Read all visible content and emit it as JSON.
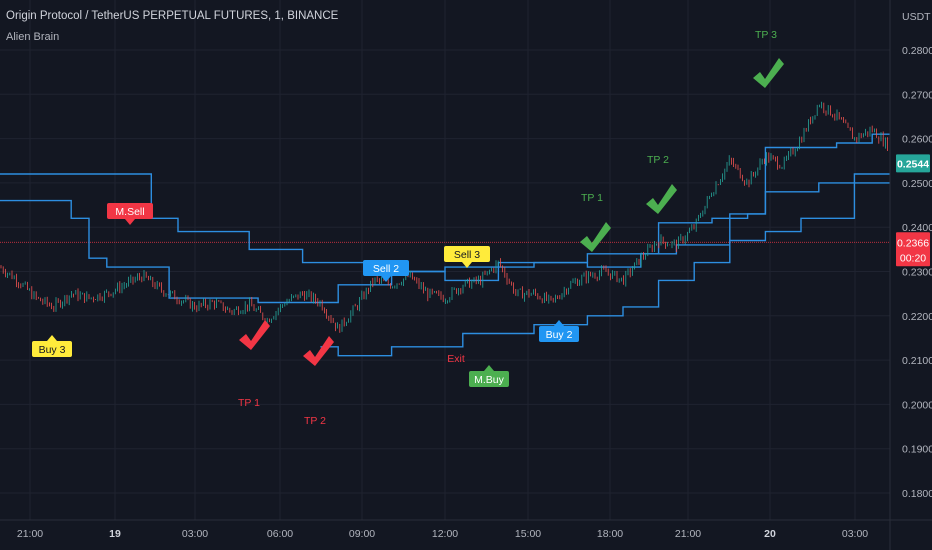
{
  "header": {
    "title": "Origin Protocol / TetherUS PERPETUAL FUTURES, 1, BINANCE",
    "indicator": "Alien Brain"
  },
  "axis": {
    "currency": "USDT",
    "price_ticks": [
      "0.2800",
      "0.2700",
      "0.2600",
      "0.2500",
      "0.2400",
      "0.2300",
      "0.2200",
      "0.2100",
      "0.2000",
      "0.1900",
      "0.1800"
    ],
    "time_ticks": [
      "21:00",
      "19",
      "03:00",
      "06:00",
      "09:00",
      "12:00",
      "15:00",
      "18:00",
      "21:00",
      "20",
      "03:00"
    ]
  },
  "last_price": {
    "value": "0.2544",
    "color": "#26a69a"
  },
  "ref_price": {
    "value": "0.2366",
    "countdown": "00:20",
    "color": "#f23645"
  },
  "colors": {
    "bg": "#131722",
    "grid": "#1f2330",
    "up": "#26a69a",
    "down": "#ef5350",
    "line": "#2d8ee0",
    "buy": "#4caf50",
    "sell": "#f23645",
    "yellow": "#ffeb3b",
    "blue": "#2196f3"
  },
  "labels": {
    "buy3": "Buy 3",
    "msell": "M.Sell",
    "sell2": "Sell 2",
    "sell3": "Sell 3",
    "buy2": "Buy 2",
    "mbuy": "M.Buy",
    "exit": "Exit",
    "tp1_red": "TP 1",
    "tp2_red": "TP 2",
    "tp1_green": "TP 1",
    "tp2_green": "TP 2",
    "tp3_green": "TP 3"
  },
  "chart_data": {
    "type": "line",
    "symbol": "Origin Protocol / TetherUS PERPETUAL FUTURES",
    "interval": "1",
    "exchange": "BINANCE",
    "ylim": [
      0.175,
      0.2875
    ],
    "price_path": [
      [
        0,
        0.231
      ],
      [
        2,
        0.228
      ],
      [
        4,
        0.224
      ],
      [
        6,
        0.222
      ],
      [
        8,
        0.225
      ],
      [
        10,
        0.224
      ],
      [
        12,
        0.225
      ],
      [
        14,
        0.227
      ],
      [
        16,
        0.229
      ],
      [
        18,
        0.226
      ],
      [
        20,
        0.224
      ],
      [
        22,
        0.222
      ],
      [
        24,
        0.223
      ],
      [
        26,
        0.221
      ],
      [
        28,
        0.2225
      ],
      [
        30,
        0.219
      ],
      [
        32,
        0.223
      ],
      [
        34,
        0.225
      ],
      [
        36,
        0.223
      ],
      [
        38,
        0.217
      ],
      [
        40,
        0.222
      ],
      [
        42,
        0.228
      ],
      [
        44,
        0.227
      ],
      [
        46,
        0.229
      ],
      [
        48,
        0.225
      ],
      [
        50,
        0.224
      ],
      [
        52,
        0.227
      ],
      [
        54,
        0.228
      ],
      [
        56,
        0.232
      ],
      [
        58,
        0.225
      ],
      [
        60,
        0.225
      ],
      [
        62,
        0.223
      ],
      [
        64,
        0.227
      ],
      [
        66,
        0.229
      ],
      [
        68,
        0.23
      ],
      [
        70,
        0.228
      ],
      [
        72,
        0.233
      ],
      [
        74,
        0.237
      ],
      [
        76,
        0.236
      ],
      [
        78,
        0.24
      ],
      [
        80,
        0.248
      ],
      [
        82,
        0.255
      ],
      [
        84,
        0.25
      ],
      [
        86,
        0.256
      ],
      [
        88,
        0.254
      ],
      [
        90,
        0.26
      ],
      [
        92,
        0.268
      ],
      [
        94,
        0.265
      ],
      [
        96,
        0.26
      ],
      [
        98,
        0.262
      ],
      [
        100,
        0.258
      ]
    ],
    "ma_lines": [
      {
        "points": [
          [
            0,
            0.252
          ],
          [
            17,
            0.252
          ],
          [
            17,
            0.242
          ],
          [
            20,
            0.242
          ],
          [
            20,
            0.239
          ],
          [
            28,
            0.239
          ],
          [
            28,
            0.235
          ],
          [
            34,
            0.235
          ],
          [
            34,
            0.232
          ],
          [
            42,
            0.232
          ],
          [
            42,
            0.23
          ],
          [
            50,
            0.23
          ],
          [
            50,
            0.228
          ],
          [
            56,
            0.228
          ],
          [
            56,
            0.232
          ],
          [
            66,
            0.232
          ],
          [
            66,
            0.234
          ],
          [
            74,
            0.234
          ],
          [
            74,
            0.241
          ],
          [
            80,
            0.241
          ],
          [
            80,
            0.242
          ],
          [
            84,
            0.242
          ],
          [
            84,
            0.243
          ],
          [
            86,
            0.243
          ],
          [
            86,
            0.258
          ],
          [
            94,
            0.258
          ],
          [
            94,
            0.259
          ],
          [
            98,
            0.259
          ],
          [
            98,
            0.261
          ],
          [
            100,
            0.261
          ]
        ]
      },
      {
        "points": [
          [
            0,
            0.246
          ],
          [
            8,
            0.246
          ],
          [
            8,
            0.242
          ],
          [
            10,
            0.242
          ],
          [
            10,
            0.233
          ],
          [
            12,
            0.233
          ],
          [
            12,
            0.231
          ],
          [
            19,
            0.231
          ],
          [
            19,
            0.224
          ],
          [
            29,
            0.224
          ],
          [
            29,
            0.223
          ],
          [
            38,
            0.223
          ],
          [
            38,
            0.227
          ],
          [
            44,
            0.227
          ],
          [
            44,
            0.23
          ],
          [
            50,
            0.23
          ],
          [
            50,
            0.231
          ],
          [
            60,
            0.231
          ],
          [
            60,
            0.232
          ],
          [
            66,
            0.232
          ],
          [
            66,
            0.231
          ],
          [
            72,
            0.231
          ],
          [
            72,
            0.234
          ],
          [
            76,
            0.234
          ],
          [
            76,
            0.236
          ],
          [
            82,
            0.236
          ],
          [
            82,
            0.243
          ],
          [
            86,
            0.243
          ],
          [
            86,
            0.248
          ],
          [
            92,
            0.248
          ],
          [
            92,
            0.25
          ],
          [
            96,
            0.25
          ],
          [
            96,
            0.252
          ],
          [
            100,
            0.252
          ]
        ]
      },
      {
        "points": [
          [
            36,
            0.213
          ],
          [
            38,
            0.213
          ],
          [
            38,
            0.211
          ],
          [
            44,
            0.211
          ],
          [
            44,
            0.213
          ],
          [
            52,
            0.213
          ],
          [
            52,
            0.216
          ],
          [
            60,
            0.216
          ],
          [
            60,
            0.218
          ],
          [
            66,
            0.218
          ],
          [
            66,
            0.22
          ],
          [
            70,
            0.22
          ],
          [
            70,
            0.222
          ],
          [
            74,
            0.222
          ],
          [
            74,
            0.228
          ],
          [
            78,
            0.228
          ],
          [
            78,
            0.232
          ],
          [
            82,
            0.232
          ],
          [
            82,
            0.237
          ],
          [
            86,
            0.237
          ],
          [
            86,
            0.239
          ],
          [
            90,
            0.239
          ],
          [
            90,
            0.242
          ],
          [
            96,
            0.242
          ],
          [
            96,
            0.25
          ],
          [
            100,
            0.25
          ]
        ]
      }
    ],
    "markers": [
      {
        "type": "label",
        "text": "Buy 3",
        "x": 6,
        "y": 0.216
      },
      {
        "type": "label",
        "text": "M.Sell",
        "x": 14,
        "y": 0.244
      },
      {
        "type": "label",
        "text": "Sell 2",
        "x": 41,
        "y": 0.232
      },
      {
        "type": "label",
        "text": "Sell 3",
        "x": 50,
        "y": 0.233
      },
      {
        "type": "label",
        "text": "Buy 2",
        "x": 60,
        "y": 0.219
      },
      {
        "type": "label",
        "text": "M.Buy",
        "x": 53,
        "y": 0.208
      },
      {
        "type": "text",
        "text": "Exit",
        "x": 49,
        "y": 0.21
      },
      {
        "type": "check",
        "color": "red",
        "text": "TP 1",
        "x": 27,
        "y": 0.218
      },
      {
        "type": "check",
        "color": "red",
        "text": "TP 2",
        "x": 34,
        "y": 0.213
      },
      {
        "type": "check",
        "color": "green",
        "text": "TP 1",
        "x": 64,
        "y": 0.24
      },
      {
        "type": "check",
        "color": "green",
        "text": "TP 2",
        "x": 71,
        "y": 0.251
      },
      {
        "type": "check",
        "color": "green",
        "text": "TP 3",
        "x": 82,
        "y": 0.273
      }
    ]
  }
}
